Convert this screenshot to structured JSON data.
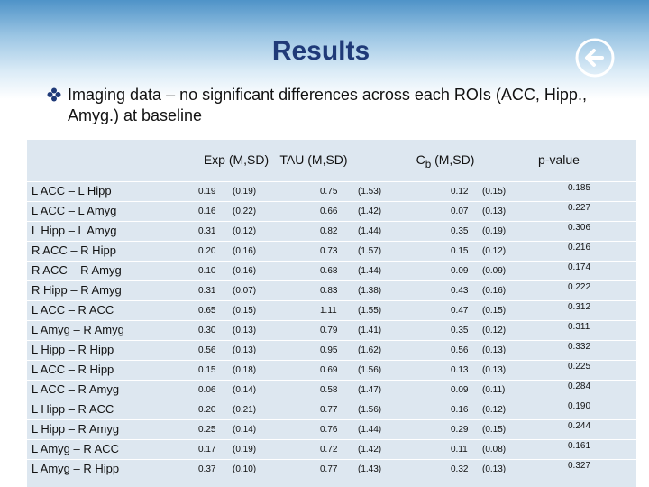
{
  "header": {
    "title": "Results",
    "bullet": "Imaging data – no significant differences across each ROIs (ACC, Hipp., Amyg.) at baseline"
  },
  "table": {
    "columns": [
      {
        "text": "Exp (M,SD)"
      },
      {
        "text": "TAU (M,SD)"
      },
      {
        "text": "C",
        "sub": "b",
        "rest": " (M,SD)"
      },
      {
        "text": "p-value"
      }
    ],
    "rows": [
      [
        "L ACC – L Hipp",
        "0.19",
        "(0.19)",
        "0.75",
        "(1.53)",
        "0.12",
        "(0.15)",
        "0.185"
      ],
      [
        "L ACC – L Amyg",
        "0.16",
        "(0.22)",
        "0.66",
        "(1.42)",
        "0.07",
        "(0.13)",
        "0.227"
      ],
      [
        "L Hipp – L Amyg",
        "0.31",
        "(0.12)",
        "0.82",
        "(1.44)",
        "0.35",
        "(0.19)",
        "0.306"
      ],
      [
        "R ACC – R Hipp",
        "0.20",
        "(0.16)",
        "0.73",
        "(1.57)",
        "0.15",
        "(0.12)",
        "0.216"
      ],
      [
        "R ACC – R Amyg",
        "0.10",
        "(0.16)",
        "0.68",
        "(1.44)",
        "0.09",
        "(0.09)",
        "0.174"
      ],
      [
        "R Hipp – R Amyg",
        "0.31",
        "(0.07)",
        "0.83",
        "(1.38)",
        "0.43",
        "(0.16)",
        "0.222"
      ],
      [
        "L ACC – R ACC",
        "0.65",
        "(0.15)",
        "1.11",
        "(1.55)",
        "0.47",
        "(0.15)",
        "0.312"
      ],
      [
        "L Amyg – R Amyg",
        "0.30",
        "(0.13)",
        "0.79",
        "(1.41)",
        "0.35",
        "(0.12)",
        "0.311"
      ],
      [
        "L Hipp – R Hipp",
        "0.56",
        "(0.13)",
        "0.95",
        "(1.62)",
        "0.56",
        "(0.13)",
        "0.332"
      ],
      [
        "L ACC – R Hipp",
        "0.15",
        "(0.18)",
        "0.69",
        "(1.56)",
        "0.13",
        "(0.13)",
        "0.225"
      ],
      [
        "L ACC – R Amyg",
        "0.06",
        "(0.14)",
        "0.58",
        "(1.47)",
        "0.09",
        "(0.11)",
        "0.284"
      ],
      [
        "L Hipp – R ACC",
        "0.20",
        "(0.21)",
        "0.77",
        "(1.56)",
        "0.16",
        "(0.12)",
        "0.190"
      ],
      [
        "L Hipp – R Amyg",
        "0.25",
        "(0.14)",
        "0.76",
        "(1.44)",
        "0.29",
        "(0.15)",
        "0.244"
      ],
      [
        "L Amyg – R ACC",
        "0.17",
        "(0.19)",
        "0.72",
        "(1.42)",
        "0.11",
        "(0.08)",
        "0.161"
      ],
      [
        "L Amyg – R Hipp",
        "0.37",
        "(0.10)",
        "0.77",
        "(1.43)",
        "0.32",
        "(0.13)",
        "0.327"
      ]
    ]
  }
}
